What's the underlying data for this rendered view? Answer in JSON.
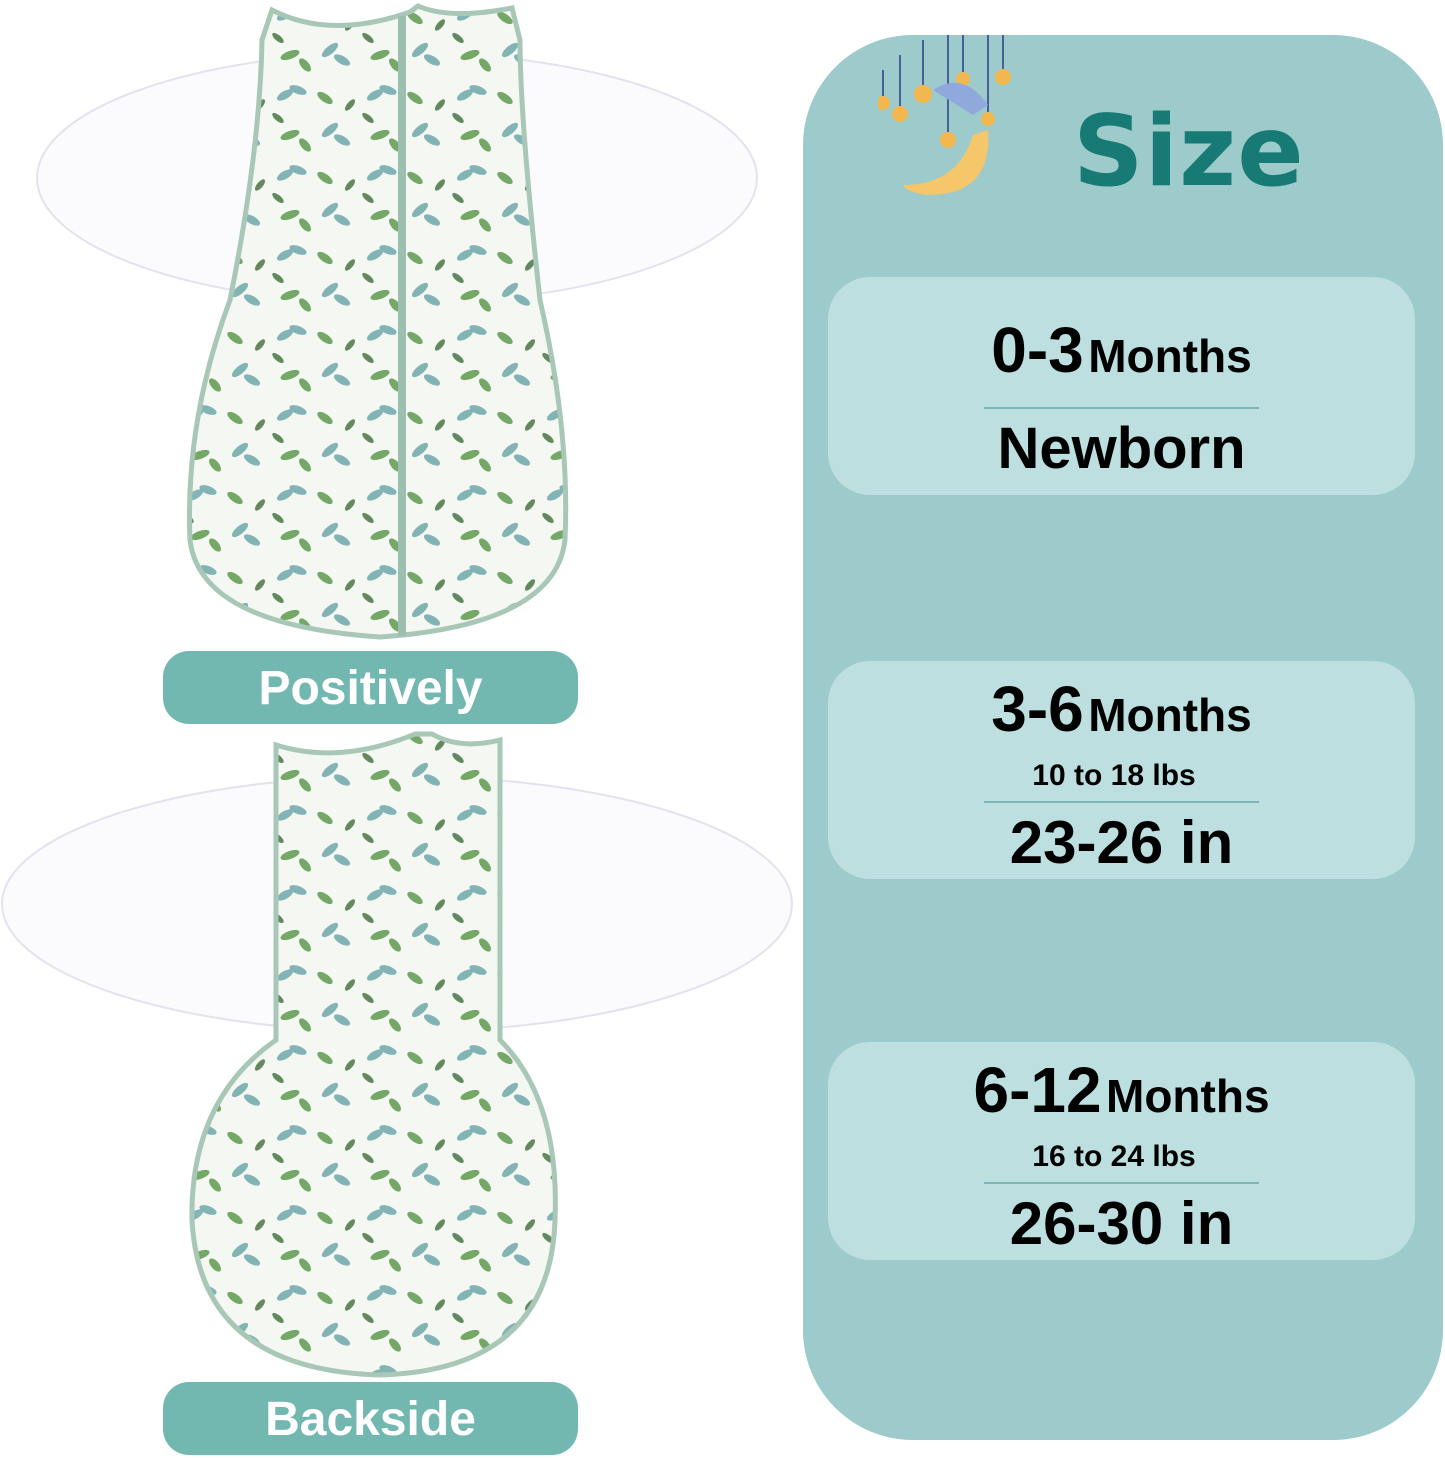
{
  "left": {
    "front_label": "Positively",
    "back_label": "Backside"
  },
  "size_panel": {
    "title": "Size",
    "icon": "moon-with-stars-icon",
    "cards": [
      {
        "range": "0-3",
        "unit": "Months",
        "weight": "",
        "detail": "Newborn"
      },
      {
        "range": "3-6",
        "unit": "Months",
        "weight": "10 to 18 lbs",
        "detail": "23-26 in"
      },
      {
        "range": "6-12",
        "unit": "Months",
        "weight": "16 to 24 lbs",
        "detail": "26-30 in"
      }
    ]
  },
  "colors": {
    "panel": "#9dcaca",
    "card": "#bddfdf",
    "title": "#187a74",
    "pill": "#72b7b0",
    "leaf_green": "#5f9a4e",
    "leaf_teal": "#6fa8ab"
  }
}
